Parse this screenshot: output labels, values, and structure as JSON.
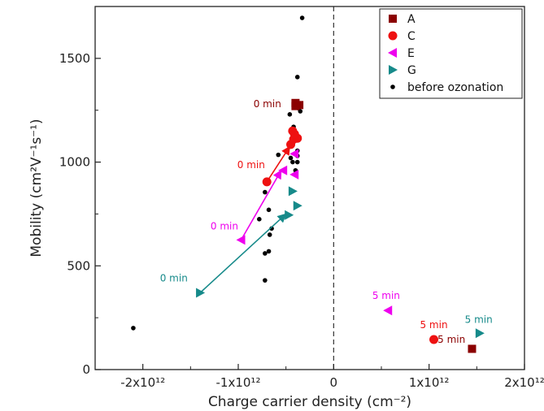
{
  "chart_data": {
    "type": "scatter",
    "title": "",
    "xlabel": "Charge carrier density (cm⁻²)",
    "ylabel": "Mobility (cm²V⁻¹s⁻¹)",
    "xlim": [
      -2500000000000.0,
      2000000000000.0
    ],
    "ylim": [
      0,
      1750
    ],
    "x_ticks": [
      {
        "value": -2000000000000.0,
        "label": "-2x10¹²"
      },
      {
        "value": -1000000000000.0,
        "label": "-1x10¹²"
      },
      {
        "value": 0,
        "label": "0"
      },
      {
        "value": 1000000000000.0,
        "label": "1x10¹²"
      },
      {
        "value": 2000000000000.0,
        "label": "2x10¹²"
      }
    ],
    "y_ticks": [
      {
        "value": 0,
        "label": "0"
      },
      {
        "value": 500,
        "label": "500"
      },
      {
        "value": 1000,
        "label": "1000"
      },
      {
        "value": 1500,
        "label": "1500"
      }
    ],
    "vertical_line": {
      "x": 0,
      "style": "dashed"
    },
    "grid": false,
    "legend_position": "top-right",
    "series": [
      {
        "name": "A",
        "marker": "square",
        "color": "#8b0000",
        "points": [
          [
            -400000000000.0,
            1285
          ],
          [
            -360000000000.0,
            1275
          ],
          [
            -400000000000.0,
            1270
          ],
          [
            1450000000000.0,
            100
          ]
        ]
      },
      {
        "name": "C",
        "marker": "circle",
        "color": "#ee1111",
        "points": [
          [
            -700000000000.0,
            905
          ],
          [
            -450000000000.0,
            1085
          ],
          [
            -420000000000.0,
            1110
          ],
          [
            -380000000000.0,
            1115
          ],
          [
            -430000000000.0,
            1150
          ],
          [
            -410000000000.0,
            1135
          ],
          [
            1050000000000.0,
            145
          ]
        ]
      },
      {
        "name": "E",
        "marker": "triangle-left",
        "color": "#ee00ee",
        "points": [
          [
            -970000000000.0,
            625
          ],
          [
            -530000000000.0,
            960
          ],
          [
            -410000000000.0,
            940
          ],
          [
            -410000000000.0,
            1040
          ],
          [
            570000000000.0,
            285
          ]
        ]
      },
      {
        "name": "G",
        "marker": "triangle-right",
        "color": "#168a8a",
        "points": [
          [
            -1400000000000.0,
            370
          ],
          [
            -470000000000.0,
            745
          ],
          [
            -430000000000.0,
            860
          ],
          [
            -380000000000.0,
            790
          ],
          [
            1530000000000.0,
            175
          ]
        ]
      },
      {
        "name": "before ozonation",
        "marker": "dot",
        "color": "#000000",
        "points": [
          [
            -2100000000000.0,
            200
          ],
          [
            -720000000000.0,
            430
          ],
          [
            -720000000000.0,
            560
          ],
          [
            -680000000000.0,
            570
          ],
          [
            -670000000000.0,
            650
          ],
          [
            -650000000000.0,
            680
          ],
          [
            -680000000000.0,
            770
          ],
          [
            -780000000000.0,
            725
          ],
          [
            -720000000000.0,
            855
          ],
          [
            -700000000000.0,
            905
          ],
          [
            -580000000000.0,
            1035
          ],
          [
            -450000000000.0,
            1020
          ],
          [
            -430000000000.0,
            1000
          ],
          [
            -380000000000.0,
            1000
          ],
          [
            -400000000000.0,
            960
          ],
          [
            -380000000000.0,
            1030
          ],
          [
            -380000000000.0,
            1055
          ],
          [
            -460000000000.0,
            1230
          ],
          [
            -420000000000.0,
            1170
          ],
          [
            -350000000000.0,
            1245
          ],
          [
            -380000000000.0,
            1410
          ],
          [
            -330000000000.0,
            1695
          ],
          [
            -370000000000.0,
            1260
          ]
        ]
      }
    ],
    "arrows": [
      {
        "from": [
          -970000000000.0,
          625
        ],
        "to": [
          -550000000000.0,
          960
        ],
        "color": "#ee00ee"
      },
      {
        "from": [
          -700000000000.0,
          905
        ],
        "to": [
          -460000000000.0,
          1075
        ],
        "color": "#ee1111"
      },
      {
        "from": [
          -1400000000000.0,
          370
        ],
        "to": [
          -500000000000.0,
          750
        ],
        "color": "#168a8a"
      }
    ],
    "annotations": [
      {
        "text": "0 min",
        "at": [
          -550000000000.0,
          1265
        ],
        "anchor": "end",
        "color": "#8b0000"
      },
      {
        "text": "0 min",
        "at": [
          -720000000000.0,
          970
        ],
        "anchor": "end",
        "color": "#ee1111"
      },
      {
        "text": "0 min",
        "at": [
          -1000000000000.0,
          675
        ],
        "anchor": "end",
        "color": "#ee00ee"
      },
      {
        "text": "0 min",
        "at": [
          -1530000000000.0,
          425
        ],
        "anchor": "end",
        "color": "#168a8a"
      },
      {
        "text": "5 min",
        "at": [
          550000000000.0,
          340
        ],
        "anchor": "middle",
        "color": "#ee00ee"
      },
      {
        "text": "5 min",
        "at": [
          1050000000000.0,
          200
        ],
        "anchor": "middle",
        "color": "#ee1111"
      },
      {
        "text": "5 min",
        "at": [
          1520000000000.0,
          225
        ],
        "anchor": "middle",
        "color": "#168a8a"
      },
      {
        "text": "5 min",
        "at": [
          1380000000000.0,
          130
        ],
        "anchor": "end",
        "color": "#8b0000"
      }
    ]
  }
}
